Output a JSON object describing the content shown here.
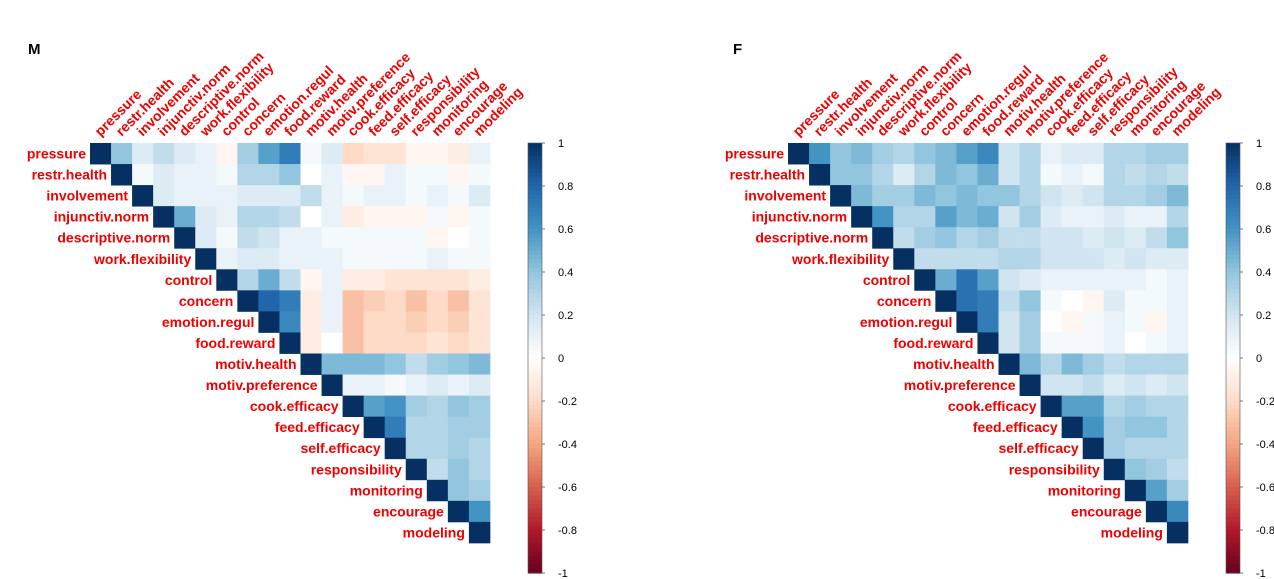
{
  "colors": {
    "label": "#ee0000",
    "scale": [
      "#67001f",
      "#b2182b",
      "#d6604d",
      "#f4a582",
      "#fddbc7",
      "#ffffff",
      "#d1e5f0",
      "#92c5de",
      "#4393c3",
      "#2166ac",
      "#053061"
    ],
    "border": "#000000"
  },
  "chart_data": [
    {
      "type": "heatmap",
      "title": "M",
      "variables": [
        "pressure",
        "restr.health",
        "involvement",
        "injunctiv.norm",
        "descriptive.norm",
        "work.flexibility",
        "control",
        "concern",
        "emotion.regul",
        "food.reward",
        "motiv.health",
        "motiv.preference",
        "cook.efficacy",
        "feed.efficacy",
        "self.efficacy",
        "responsibility",
        "monitoring",
        "encourage",
        "modeling"
      ],
      "layout": "upper triangle incl. diagonal",
      "colorbar": {
        "ticks": [
          "1",
          "0.8",
          "0.6",
          "0.4",
          "0.2",
          "0",
          "-0.2",
          "-0.4",
          "-0.6",
          "-0.8",
          "-1"
        ],
        "range": [
          -1,
          1
        ]
      },
      "values": [
        [
          1,
          0.4,
          0.15,
          0.25,
          0.15,
          0.1,
          -0.05,
          0.35,
          0.55,
          0.7,
          0.05,
          0.15,
          -0.2,
          -0.15,
          -0.15,
          -0.05,
          -0.05,
          -0.1,
          0.1
        ],
        [
          1,
          0.05,
          0.15,
          0.1,
          0.1,
          0.05,
          0.3,
          0.3,
          0.4,
          0.0,
          0.1,
          -0.05,
          -0.05,
          0.1,
          0.05,
          0.05,
          -0.05,
          0.05
        ],
        [
          1,
          0.15,
          0.1,
          0.1,
          0.1,
          0.15,
          0.15,
          0.15,
          0.25,
          0.1,
          0.05,
          0.1,
          0.1,
          0.05,
          0.1,
          0.05,
          0.15
        ],
        [
          1,
          0.5,
          0.15,
          0.1,
          0.3,
          0.3,
          0.25,
          0.0,
          0.1,
          -0.1,
          -0.05,
          -0.05,
          -0.05,
          0.05,
          -0.05,
          0.05
        ],
        [
          1,
          0.15,
          0.05,
          0.25,
          0.2,
          0.1,
          0.1,
          0.05,
          0.05,
          0.05,
          0.05,
          0.05,
          -0.05,
          0.0,
          0.05
        ],
        [
          1,
          0.1,
          0.15,
          0.15,
          0.1,
          0.1,
          0.1,
          0.05,
          0.05,
          0.05,
          0.05,
          0.1,
          0.05,
          0.05
        ],
        [
          1,
          0.3,
          0.5,
          0.25,
          -0.05,
          0.1,
          -0.1,
          -0.1,
          -0.15,
          -0.15,
          -0.15,
          -0.15,
          -0.1
        ],
        [
          1,
          0.8,
          0.7,
          -0.1,
          0.1,
          -0.3,
          -0.25,
          -0.2,
          -0.3,
          -0.2,
          -0.3,
          -0.15
        ],
        [
          1,
          0.65,
          -0.1,
          0.1,
          -0.3,
          -0.2,
          -0.2,
          -0.25,
          -0.2,
          -0.25,
          -0.15
        ],
        [
          1,
          -0.1,
          0.0,
          -0.3,
          -0.2,
          -0.2,
          -0.2,
          -0.15,
          -0.2,
          -0.15
        ],
        [
          1,
          0.45,
          0.45,
          0.45,
          0.4,
          0.25,
          0.35,
          0.4,
          0.45
        ],
        [
          1,
          0.1,
          0.1,
          0.05,
          0.1,
          0.15,
          0.1,
          0.15
        ],
        [
          1,
          0.55,
          0.6,
          0.35,
          0.3,
          0.4,
          0.35
        ],
        [
          1,
          0.7,
          0.3,
          0.3,
          0.35,
          0.35
        ],
        [
          1,
          0.3,
          0.3,
          0.35,
          0.3
        ],
        [
          1,
          0.25,
          0.4,
          0.3
        ],
        [
          1,
          0.4,
          0.35
        ],
        [
          1,
          0.6
        ],
        [
          1
        ]
      ]
    },
    {
      "type": "heatmap",
      "title": "F",
      "variables": [
        "pressure",
        "restr.health",
        "involvement",
        "injunctiv.norm",
        "descriptive.norm",
        "work.flexibility",
        "control",
        "concern",
        "emotion.regul",
        "food.reward",
        "motiv.health",
        "motiv.preference",
        "cook.efficacy",
        "feed.efficacy",
        "self.efficacy",
        "responsibility",
        "monitoring",
        "encourage",
        "modeling"
      ],
      "layout": "upper triangle incl. diagonal",
      "colorbar": {
        "ticks": [
          "1",
          "0.8",
          "0.6",
          "0.4",
          "0.2",
          "0",
          "-0.2",
          "-0.4",
          "-0.6",
          "-0.8",
          "-1"
        ],
        "range": [
          -1,
          1
        ]
      },
      "values": [
        [
          1,
          0.6,
          0.4,
          0.45,
          0.35,
          0.3,
          0.4,
          0.45,
          0.55,
          0.65,
          0.2,
          0.3,
          0.1,
          0.15,
          0.15,
          0.3,
          0.3,
          0.35,
          0.35
        ],
        [
          1,
          0.4,
          0.4,
          0.3,
          0.15,
          0.3,
          0.45,
          0.4,
          0.5,
          0.2,
          0.3,
          0.05,
          0.1,
          0.05,
          0.3,
          0.25,
          0.3,
          0.25
        ],
        [
          1,
          0.45,
          0.35,
          0.35,
          0.45,
          0.4,
          0.45,
          0.4,
          0.4,
          0.3,
          0.2,
          0.15,
          0.2,
          0.3,
          0.3,
          0.35,
          0.45
        ],
        [
          1,
          0.6,
          0.3,
          0.3,
          0.55,
          0.45,
          0.5,
          0.2,
          0.35,
          0.15,
          0.1,
          0.1,
          0.15,
          0.1,
          0.1,
          0.3
        ],
        [
          1,
          0.25,
          0.35,
          0.4,
          0.3,
          0.35,
          0.25,
          0.25,
          0.2,
          0.2,
          0.15,
          0.2,
          0.15,
          0.25,
          0.4
        ],
        [
          1,
          0.25,
          0.25,
          0.25,
          0.25,
          0.3,
          0.3,
          0.2,
          0.2,
          0.2,
          0.15,
          0.2,
          0.15,
          0.15
        ],
        [
          1,
          0.5,
          0.75,
          0.55,
          0.2,
          0.15,
          0.1,
          0.1,
          0.1,
          0.1,
          0.1,
          0.05,
          0.1
        ],
        [
          1,
          0.75,
          0.7,
          0.25,
          0.4,
          0.05,
          0.0,
          -0.05,
          0.15,
          0.05,
          0.05,
          0.1
        ],
        [
          1,
          0.7,
          0.2,
          0.35,
          0.0,
          -0.05,
          0.05,
          0.1,
          0.05,
          -0.05,
          0.1
        ],
        [
          1,
          0.2,
          0.35,
          0.05,
          0.05,
          0.05,
          0.1,
          0.0,
          0.05,
          0.1
        ],
        [
          1,
          0.45,
          0.3,
          0.45,
          0.35,
          0.25,
          0.3,
          0.3,
          0.3
        ],
        [
          1,
          0.2,
          0.2,
          0.25,
          0.15,
          0.2,
          0.15,
          0.2
        ],
        [
          1,
          0.55,
          0.55,
          0.3,
          0.35,
          0.3,
          0.3
        ],
        [
          1,
          0.6,
          0.35,
          0.4,
          0.4,
          0.3
        ],
        [
          1,
          0.35,
          0.3,
          0.3,
          0.3
        ],
        [
          1,
          0.4,
          0.35,
          0.25
        ],
        [
          1,
          0.55,
          0.35
        ],
        [
          1,
          0.65
        ],
        [
          1
        ]
      ]
    }
  ]
}
